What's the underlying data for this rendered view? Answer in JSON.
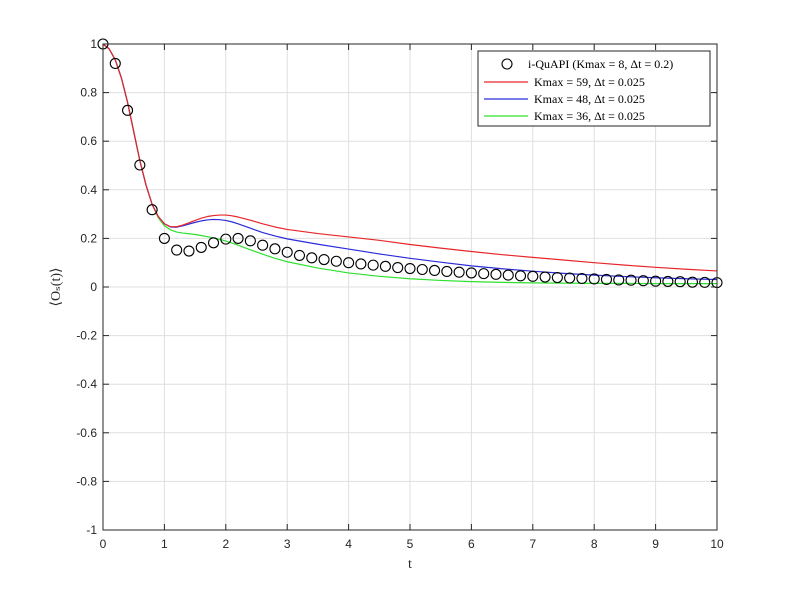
{
  "chart_data": {
    "type": "line",
    "xlabel": "t",
    "ylabel": "⟨Oₛ(t)⟩",
    "xlim": [
      0,
      10
    ],
    "ylim": [
      -1,
      1
    ],
    "xticks": [
      "0",
      "1",
      "2",
      "3",
      "4",
      "5",
      "6",
      "7",
      "8",
      "9",
      "10"
    ],
    "yticks": [
      "-1",
      "-0.8",
      "-0.6",
      "-0.4",
      "-0.2",
      "0",
      "0.2",
      "0.4",
      "0.6",
      "0.8",
      "1"
    ],
    "grid": true,
    "legend_position": "top-right",
    "series": [
      {
        "name": "i-QuAPI (Kmax = 8, Δt = 0.2)",
        "kind": "marker",
        "color": "#000000",
        "x": [
          0,
          0.2,
          0.4,
          0.6,
          0.8,
          1.0,
          1.2,
          1.4,
          1.6,
          1.8,
          2.0,
          2.2,
          2.4,
          2.6,
          2.8,
          3.0,
          3.2,
          3.4,
          3.6,
          3.8,
          4.0,
          4.2,
          4.4,
          4.6,
          4.8,
          5.0,
          5.2,
          5.4,
          5.6,
          5.8,
          6.0,
          6.2,
          6.4,
          6.6,
          6.8,
          7.0,
          7.2,
          7.4,
          7.6,
          7.8,
          8.0,
          8.2,
          8.4,
          8.6,
          8.8,
          9.0,
          9.2,
          9.4,
          9.6,
          9.8,
          10.0
        ],
        "y": [
          1.0,
          0.92,
          0.727,
          0.502,
          0.318,
          0.2,
          0.152,
          0.148,
          0.163,
          0.182,
          0.197,
          0.2,
          0.19,
          0.172,
          0.157,
          0.143,
          0.13,
          0.12,
          0.113,
          0.106,
          0.1,
          0.095,
          0.09,
          0.085,
          0.08,
          0.076,
          0.072,
          0.068,
          0.064,
          0.061,
          0.058,
          0.055,
          0.052,
          0.049,
          0.046,
          0.044,
          0.041,
          0.039,
          0.037,
          0.035,
          0.033,
          0.031,
          0.029,
          0.028,
          0.026,
          0.024,
          0.023,
          0.022,
          0.02,
          0.019,
          0.018
        ]
      },
      {
        "name": "Kmax = 59, Δt = 0.025",
        "kind": "line",
        "color": "#e8262a",
        "x": [
          0,
          0.1,
          0.2,
          0.3,
          0.4,
          0.5,
          0.6,
          0.7,
          0.8,
          0.9,
          1.0,
          1.1,
          1.2,
          1.3,
          1.4,
          1.5,
          1.6,
          1.7,
          1.8,
          1.9,
          2.0,
          2.1,
          2.2,
          2.4,
          2.6,
          2.8,
          3.0,
          3.5,
          4.0,
          4.5,
          5.0,
          5.5,
          6.0,
          6.5,
          7.0,
          7.5,
          8.0,
          8.5,
          9.0,
          9.5,
          10.0
        ],
        "y": [
          1.0,
          0.98,
          0.935,
          0.86,
          0.76,
          0.64,
          0.52,
          0.42,
          0.34,
          0.29,
          0.26,
          0.248,
          0.248,
          0.255,
          0.264,
          0.274,
          0.283,
          0.29,
          0.294,
          0.296,
          0.296,
          0.293,
          0.288,
          0.275,
          0.26,
          0.247,
          0.237,
          0.22,
          0.206,
          0.192,
          0.175,
          0.16,
          0.146,
          0.133,
          0.122,
          0.111,
          0.1,
          0.09,
          0.081,
          0.073,
          0.066
        ]
      },
      {
        "name": "Kmax = 48, Δt = 0.025",
        "kind": "line",
        "color": "#2b2bd9",
        "x": [
          0,
          0.1,
          0.2,
          0.3,
          0.4,
          0.5,
          0.6,
          0.7,
          0.8,
          0.9,
          1.0,
          1.1,
          1.2,
          1.3,
          1.4,
          1.5,
          1.6,
          1.7,
          1.8,
          1.9,
          2.0,
          2.1,
          2.2,
          2.4,
          2.6,
          2.8,
          3.0,
          3.5,
          4.0,
          4.5,
          5.0,
          5.5,
          6.0,
          6.5,
          7.0,
          7.5,
          8.0,
          8.5,
          9.0,
          9.5,
          10.0
        ],
        "y": [
          1.0,
          0.98,
          0.935,
          0.86,
          0.76,
          0.64,
          0.52,
          0.42,
          0.34,
          0.29,
          0.26,
          0.247,
          0.246,
          0.252,
          0.259,
          0.266,
          0.272,
          0.276,
          0.278,
          0.277,
          0.274,
          0.268,
          0.26,
          0.242,
          0.224,
          0.21,
          0.198,
          0.176,
          0.156,
          0.136,
          0.118,
          0.102,
          0.087,
          0.075,
          0.065,
          0.056,
          0.049,
          0.043,
          0.038,
          0.034,
          0.031
        ]
      },
      {
        "name": "Kmax = 36, Δt = 0.025",
        "kind": "line",
        "color": "#2ee02e",
        "x": [
          0,
          0.1,
          0.2,
          0.3,
          0.4,
          0.5,
          0.6,
          0.7,
          0.8,
          0.9,
          1.0,
          1.1,
          1.2,
          1.3,
          1.4,
          1.5,
          1.6,
          1.7,
          1.8,
          1.9,
          2.0,
          2.1,
          2.2,
          2.4,
          2.6,
          2.8,
          3.0,
          3.5,
          4.0,
          4.5,
          5.0,
          5.5,
          6.0,
          6.5,
          7.0,
          7.5,
          8.0,
          8.5,
          9.0,
          9.5,
          10.0
        ],
        "y": [
          1.0,
          0.98,
          0.935,
          0.86,
          0.76,
          0.64,
          0.52,
          0.42,
          0.34,
          0.285,
          0.252,
          0.235,
          0.226,
          0.222,
          0.219,
          0.216,
          0.212,
          0.207,
          0.202,
          0.196,
          0.189,
          0.181,
          0.172,
          0.153,
          0.135,
          0.118,
          0.104,
          0.078,
          0.058,
          0.044,
          0.034,
          0.027,
          0.022,
          0.019,
          0.017,
          0.016,
          0.015,
          0.015,
          0.014,
          0.014,
          0.014
        ]
      }
    ]
  }
}
